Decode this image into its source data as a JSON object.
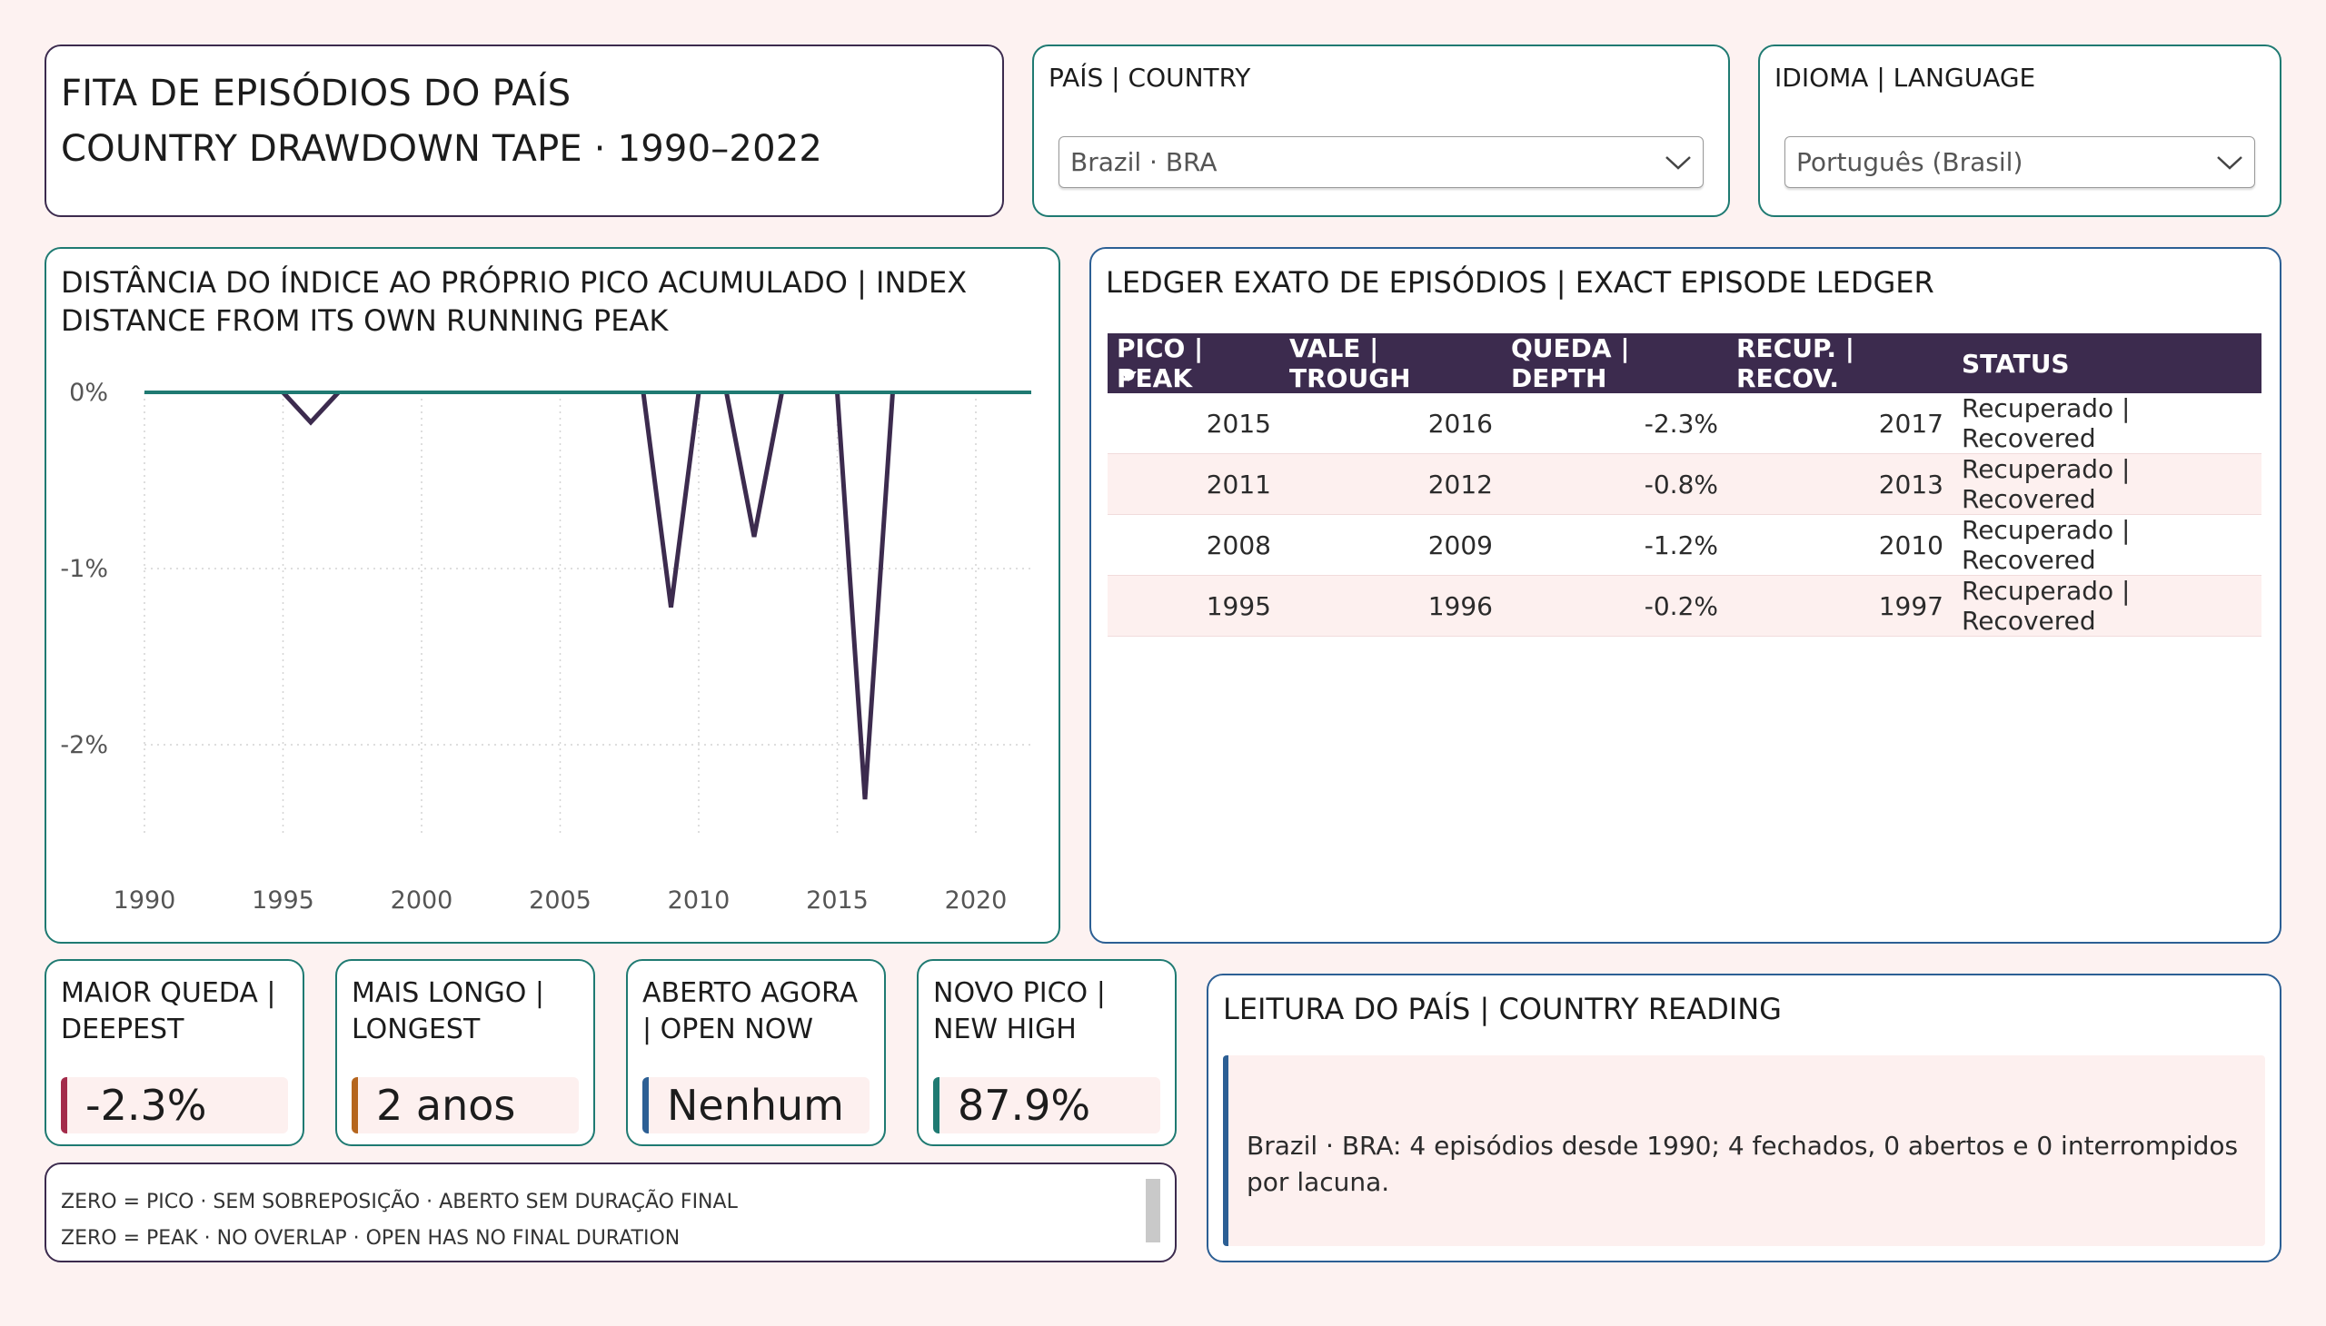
{
  "header": {
    "title_line1": "FITA DE EPISÓDIOS DO PAÍS",
    "title_line2": "COUNTRY DRAWDOWN TAPE · 1990–2022"
  },
  "slicers": {
    "country": {
      "label": "PAÍS | COUNTRY",
      "value": "Brazil · BRA"
    },
    "language": {
      "label": "IDIOMA | LANGUAGE",
      "value": "Português (Brasil)"
    }
  },
  "colors": {
    "teal": "#1f7a72",
    "purple": "#3c2b4e",
    "blue": "#2c5f94",
    "crimson": "#a32b4a",
    "orange": "#b5651d",
    "background": "#fdf2f1"
  },
  "chart": {
    "title_line1": "DISTÂNCIA DO ÍNDICE AO PRÓPRIO PICO ACUMULADO | INDEX",
    "title_line2": "DISTANCE FROM ITS OWN RUNNING PEAK"
  },
  "chart_data": {
    "type": "line",
    "title": "DISTÂNCIA DO ÍNDICE AO PRÓPRIO PICO ACUMULADO | INDEX DISTANCE FROM ITS OWN RUNNING PEAK",
    "xlim": [
      1990,
      2022
    ],
    "ylim": [
      -2.5,
      0
    ],
    "x_ticks": [
      1990,
      1995,
      2000,
      2005,
      2010,
      2015,
      2020
    ],
    "x_tick_labels": [
      "1990",
      "1995",
      "2000",
      "2005",
      "2010",
      "2015",
      "2020"
    ],
    "y_ticks": [
      0,
      -1,
      -2
    ],
    "y_tick_labels": [
      "0%",
      "-1%",
      "-2%"
    ],
    "grid": true,
    "baseline": {
      "x": [
        1990,
        2022
      ],
      "y": [
        0,
        0
      ],
      "color": "#1f7a72"
    },
    "series": [
      {
        "color": "#3c2b4e",
        "x": [
          1995,
          1996,
          1997
        ],
        "y": [
          0,
          -0.17,
          0
        ]
      },
      {
        "color": "#3c2b4e",
        "x": [
          2008,
          2009,
          2010
        ],
        "y": [
          0,
          -1.22,
          0
        ]
      },
      {
        "color": "#3c2b4e",
        "x": [
          2011,
          2012,
          2013
        ],
        "y": [
          0,
          -0.82,
          0
        ]
      },
      {
        "color": "#3c2b4e",
        "x": [
          2015,
          2016,
          2017
        ],
        "y": [
          0,
          -2.31,
          0
        ]
      }
    ]
  },
  "ledger": {
    "title": "LEDGER EXATO DE EPISÓDIOS | EXACT EPISODE LEDGER",
    "columns": [
      "PICO | PEAK",
      "VALE | TROUGH",
      "QUEDA | DEPTH",
      "RECUP. | RECOV.",
      "STATUS"
    ],
    "rows": [
      [
        "2015",
        "2016",
        "-2.3%",
        "2017",
        "Recuperado | Recovered"
      ],
      [
        "2011",
        "2012",
        "-0.8%",
        "2013",
        "Recuperado | Recovered"
      ],
      [
        "2008",
        "2009",
        "-1.2%",
        "2010",
        "Recuperado | Recovered"
      ],
      [
        "1995",
        "1996",
        "-0.2%",
        "1997",
        "Recuperado | Recovered"
      ]
    ]
  },
  "kpis": [
    {
      "label": "MAIOR QUEDA | DEEPEST",
      "value": "-2.3%",
      "accent": "#a32b4a"
    },
    {
      "label": "MAIS LONGO | LONGEST",
      "value": "2 anos",
      "accent": "#b5651d"
    },
    {
      "label": "ABERTO AGORA | OPEN NOW",
      "value": "Nenhum",
      "accent": "#2c5f94"
    },
    {
      "label": "NOVO PICO | NEW HIGH",
      "value": "87.9%",
      "accent": "#1f7a72"
    }
  ],
  "note": {
    "line1": "ZERO = PICO · SEM SOBREPOSIÇÃO · ABERTO SEM DURAÇÃO FINAL",
    "line2": "ZERO = PEAK · NO OVERLAP · OPEN HAS NO FINAL DURATION"
  },
  "reading": {
    "title": "LEITURA DO PAÍS | COUNTRY READING",
    "text": "Brazil · BRA: 4 episódios desde 1990; 4 fechados, 0 abertos e 0 interrompidos por lacuna."
  }
}
